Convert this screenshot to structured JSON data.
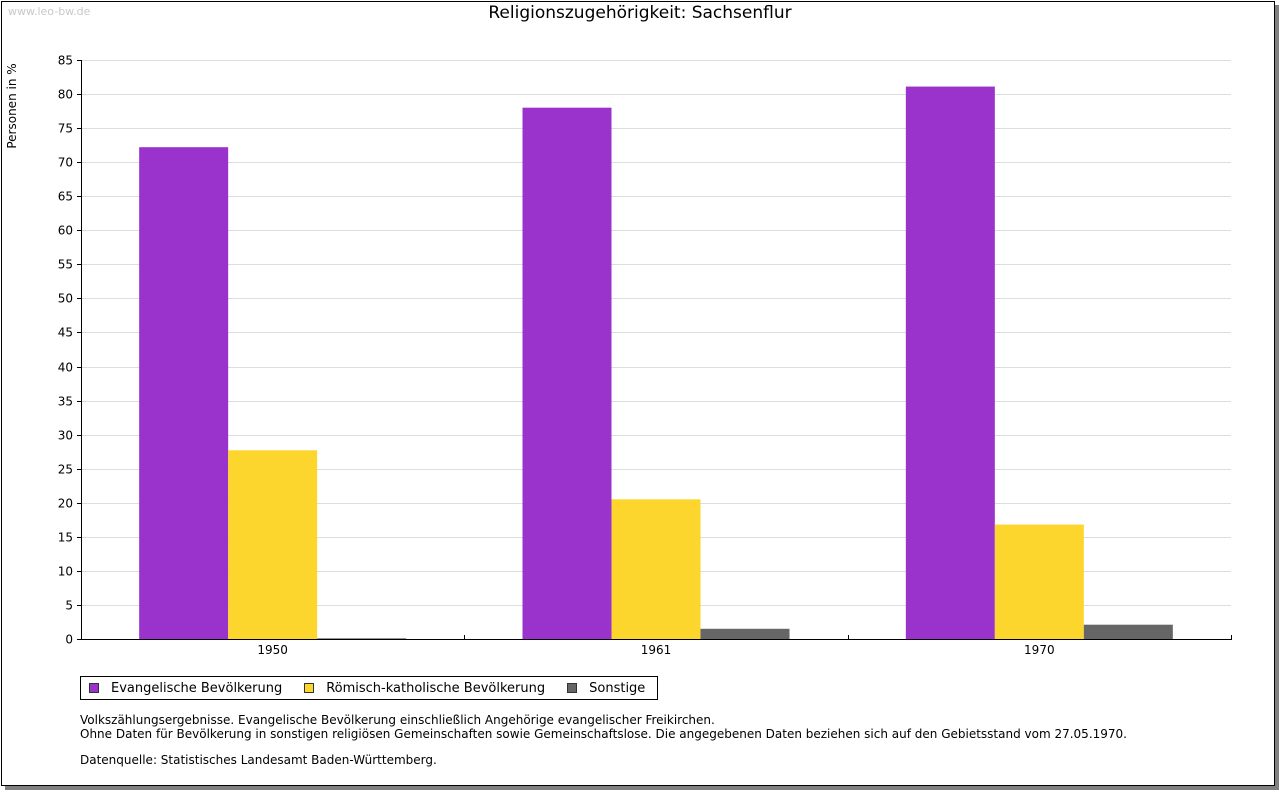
{
  "watermark": "www.leo-bw.de",
  "chart_data": {
    "type": "bar",
    "title": "Religionszugehörigkeit: Sachsenflur",
    "xlabel": "",
    "ylabel": "Personen in %",
    "ylim": [
      0,
      85
    ],
    "yticks": [
      0,
      5,
      10,
      15,
      20,
      25,
      30,
      35,
      40,
      45,
      50,
      55,
      60,
      65,
      70,
      75,
      80,
      85
    ],
    "categories": [
      "1950",
      "1961",
      "1970"
    ],
    "series": [
      {
        "name": "Evangelische Bevölkerung",
        "color": "#9933cc",
        "values": [
          72.2,
          78.0,
          81.1
        ]
      },
      {
        "name": "Römisch-katholische Bevölkerung",
        "color": "#fcd52d",
        "values": [
          27.7,
          20.5,
          16.8
        ]
      },
      {
        "name": "Sonstige",
        "color": "#666666",
        "values": [
          0.1,
          1.5,
          2.1
        ]
      }
    ],
    "grid": true,
    "legend_position": "bottom-left"
  },
  "notes": {
    "line1": "Volkszählungsergebnisse. Evangelische Bevölkerung einschließlich Angehörige evangelischer Freikirchen.",
    "line2": "Ohne Daten für Bevölkerung in sonstigen religiösen Gemeinschaften sowie Gemeinschaftslose. Die angegebenen Daten beziehen sich auf den Gebietsstand vom 27.05.1970."
  },
  "source": "Datenquelle: Statistisches Landesamt Baden-Württemberg."
}
